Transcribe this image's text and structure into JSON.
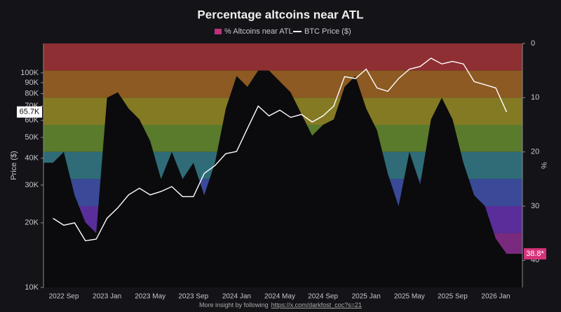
{
  "chart_data": {
    "type": "line",
    "title": "Percentage altcoins near ATL",
    "x": [
      "2022 Aug",
      "2022 Sep",
      "2022 Oct",
      "2022 Nov",
      "2022 Dec",
      "2023 Jan",
      "2023 Feb",
      "2023 Mar",
      "2023 Apr",
      "2023 May",
      "2023 Jun",
      "2023 Jul",
      "2023 Aug",
      "2023 Sep",
      "2023 Oct",
      "2023 Nov",
      "2023 Dec",
      "2024 Jan",
      "2024 Feb",
      "2024 Mar",
      "2024 Apr",
      "2024 May",
      "2024 Jun",
      "2024 Jul",
      "2024 Aug",
      "2024 Sep",
      "2024 Oct",
      "2024 Nov",
      "2024 Dec",
      "2025 Jan",
      "2025 Feb",
      "2025 Mar",
      "2025 Apr",
      "2025 May",
      "2025 Jun",
      "2025 Jul",
      "2025 Aug",
      "2025 Sep",
      "2025 Oct",
      "2025 Nov",
      "2025 Dec",
      "2026 Jan",
      "2026 Feb"
    ],
    "xticks": [
      "2022 Sep",
      "2023 Jan",
      "2023 May",
      "2023 Sep",
      "2024 Jan",
      "2024 May",
      "2024 Sep",
      "2025 Jan",
      "2025 May",
      "2025 Sep",
      "2026 Jan"
    ],
    "series": [
      {
        "name": "% Altcoins near ATL",
        "color": "#c0307a",
        "axis": "y2",
        "fill": "#0b0b0d",
        "values": [
          22,
          20,
          28,
          33,
          35,
          10,
          9,
          12,
          14,
          18,
          25,
          20,
          25,
          22,
          28,
          22,
          12,
          6,
          8,
          5,
          5,
          7,
          9,
          13,
          17,
          15,
          14,
          8,
          6,
          12,
          16,
          24,
          30,
          20,
          26,
          14,
          10,
          14,
          22,
          28,
          30,
          36,
          38.8
        ]
      },
      {
        "name": "BTC Price ($)",
        "color": "#ffffff",
        "axis": "y",
        "values": [
          21000,
          19500,
          20000,
          16500,
          16800,
          21000,
          23500,
          27000,
          29000,
          27000,
          28000,
          29500,
          26500,
          26500,
          34000,
          37000,
          42000,
          43000,
          55000,
          70000,
          63000,
          67000,
          62000,
          64000,
          59000,
          63000,
          70000,
          96000,
          94000,
          104000,
          85000,
          82000,
          94000,
          104000,
          107000,
          117000,
          110000,
          113000,
          110000,
          91000,
          88000,
          85000,
          65700
        ]
      }
    ],
    "ylabel": "Price ($)",
    "y2label": "%",
    "log_y": true,
    "ylim": [
      10000,
      137000
    ],
    "yticks": [
      {
        "value": 10000,
        "label": "10K"
      },
      {
        "value": 20000,
        "label": "20K"
      },
      {
        "value": 30000,
        "label": "30K"
      },
      {
        "value": 40000,
        "label": "40K"
      },
      {
        "value": 50000,
        "label": "50K"
      },
      {
        "value": 60000,
        "label": "60K"
      },
      {
        "value": 70000,
        "label": "70K"
      },
      {
        "value": 80000,
        "label": "80K"
      },
      {
        "value": 90000,
        "label": "90K"
      },
      {
        "value": 100000,
        "label": "100K"
      }
    ],
    "y2lim": [
      0,
      45
    ],
    "y2ticks": [
      0,
      10,
      20,
      30,
      40
    ],
    "y2_inverted": true,
    "band_colors": [
      "#8e2f33",
      "#8c5a22",
      "#857a24",
      "#5a7a2c",
      "#2f6c78",
      "#3a4a98",
      "#5a2e9a",
      "#7a2a7e",
      "#8c2a5a"
    ],
    "annotations": [
      {
        "text": "65.7K",
        "value": 65700,
        "axis": "y"
      },
      {
        "text": "38.8*",
        "value": 38.8,
        "axis": "y2"
      }
    ],
    "footer": "More insight by following",
    "footer_link": "https://x.com/darkfost_coc?s=21"
  }
}
